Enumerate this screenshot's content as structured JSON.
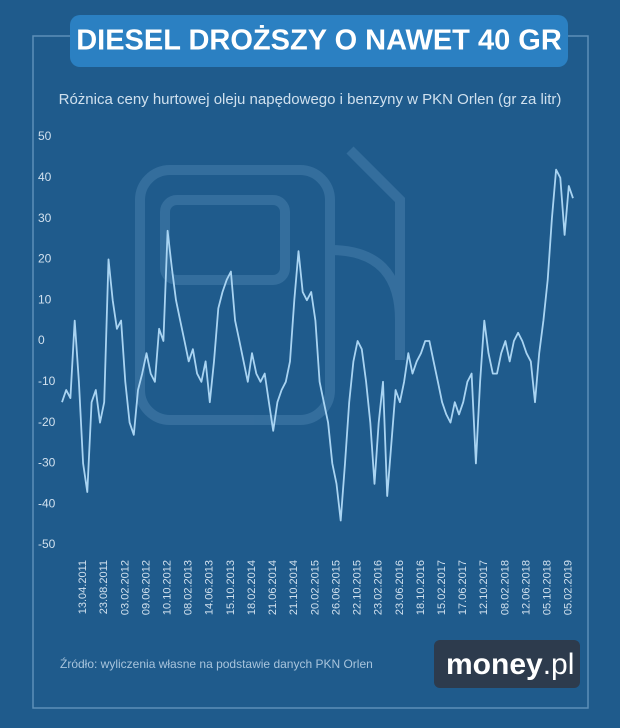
{
  "chart_data": {
    "type": "line",
    "title": "DIESEL DROŻSZY O NAWET 40 GR",
    "subtitle": "Różnica ceny hurtowej oleju napędowego i benzyny w PKN Orlen (gr za litr)",
    "source": "Źródło: wyliczenia własne na podstawie danych PKN Orlen",
    "logo": {
      "name": "money",
      "suffix": ".pl"
    },
    "categories": [
      null,
      null,
      null,
      null,
      null,
      "13.04.2011",
      null,
      null,
      null,
      null,
      "23.08.2011",
      null,
      null,
      null,
      null,
      "03.02.2012",
      null,
      null,
      null,
      null,
      "09.06.2012",
      null,
      null,
      null,
      null,
      "10.10.2012",
      null,
      null,
      null,
      null,
      "08.02.2013",
      null,
      null,
      null,
      null,
      "14.06.2013",
      null,
      null,
      null,
      null,
      "15.10.2013",
      null,
      null,
      null,
      null,
      "18.02.2014",
      null,
      null,
      null,
      null,
      "21.06.2014",
      null,
      null,
      null,
      null,
      "21.10.2014",
      null,
      null,
      null,
      null,
      "20.02.2015",
      null,
      null,
      null,
      null,
      "26.06.2015",
      null,
      null,
      null,
      null,
      "22.10.2015",
      null,
      null,
      null,
      null,
      "23.02.2016",
      null,
      null,
      null,
      null,
      "23.06.2016",
      null,
      null,
      null,
      null,
      "18.10.2016",
      null,
      null,
      null,
      null,
      "15.02.2017",
      null,
      null,
      null,
      null,
      "17.06.2017",
      null,
      null,
      null,
      null,
      "12.10.2017",
      null,
      null,
      null,
      null,
      "08.02.2018",
      null,
      null,
      null,
      null,
      "12.06.2018",
      null,
      null,
      null,
      null,
      "05.10.2018",
      null,
      null,
      null,
      null,
      "05.02.2019",
      null
    ],
    "series": [
      {
        "name": null,
        "color": "#a9d4f2",
        "values": [
          -15,
          -12,
          -14,
          5,
          -10,
          -30,
          -37,
          -15,
          -12,
          -20,
          -15,
          20,
          10,
          3,
          5,
          -10,
          -20,
          -23,
          -12,
          -8,
          -3,
          -8,
          -10,
          3,
          0,
          27,
          18,
          10,
          5,
          0,
          -5,
          -2,
          -8,
          -10,
          -5,
          -15,
          -5,
          8,
          12,
          15,
          17,
          5,
          0,
          -5,
          -10,
          -3,
          -8,
          -10,
          -8,
          -15,
          -22,
          -15,
          -12,
          -10,
          -5,
          10,
          22,
          12,
          10,
          12,
          5,
          -10,
          -15,
          -20,
          -30,
          -35,
          -44,
          -30,
          -15,
          -5,
          0,
          -2,
          -10,
          -20,
          -35,
          -20,
          -10,
          -38,
          -25,
          -12,
          -15,
          -10,
          -3,
          -8,
          -5,
          -3,
          0,
          0,
          -5,
          -10,
          -15,
          -18,
          -20,
          -15,
          -18,
          -15,
          -10,
          -8,
          -30,
          -10,
          5,
          -3,
          -8,
          -8,
          -3,
          0,
          -5,
          0,
          2,
          0,
          -3,
          -5,
          -15,
          -3,
          5,
          15,
          30,
          42,
          40,
          26,
          38,
          35
        ]
      }
    ],
    "ylim": [
      -50,
      50
    ],
    "yticks": [
      -50,
      -40,
      -30,
      -20,
      -10,
      0,
      10,
      20,
      30,
      40,
      50
    ],
    "grid": false
  }
}
